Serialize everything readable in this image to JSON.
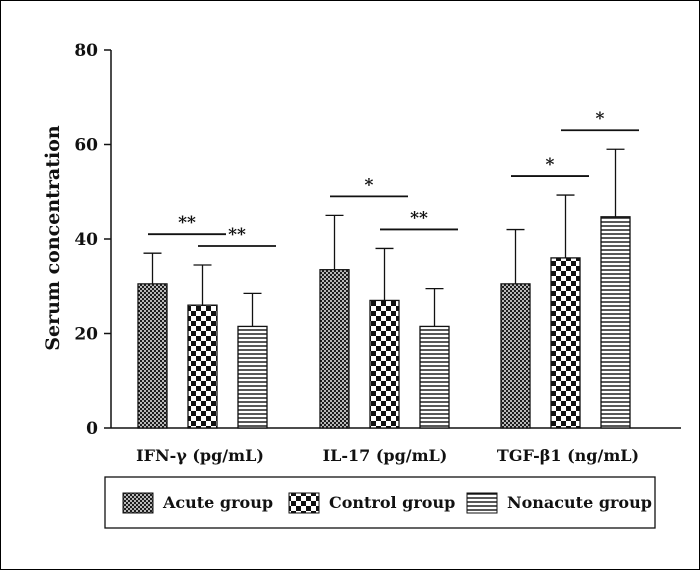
{
  "chart_data": {
    "type": "bar",
    "categories": [
      "IFN-γ (pg/mL)",
      "IL-17 (pg/mL)",
      "TGF-β1 (ng/mL)"
    ],
    "series": [
      {
        "name": "Acute group",
        "pattern": "crosshatch",
        "values": [
          30.5,
          33.5,
          30.5
        ],
        "errors": [
          6.5,
          11.5,
          11.5
        ]
      },
      {
        "name": "Control group",
        "pattern": "checker",
        "values": [
          26,
          27,
          36
        ],
        "errors": [
          8.5,
          11,
          13.3
        ]
      },
      {
        "name": "Nonacute group",
        "pattern": "horizontal-lines",
        "values": [
          21.5,
          21.5,
          44.7
        ],
        "errors": [
          7,
          8,
          14.3
        ]
      }
    ],
    "ylabel": "Serum concentration",
    "ylim": [
      0,
      80
    ],
    "yticks": [
      "0",
      "20",
      "40",
      "60",
      "80"
    ],
    "grid": false,
    "legend_position": "bottom",
    "annotations": [
      {
        "category": 0,
        "from_series": 0,
        "to_series": 1,
        "text": "**"
      },
      {
        "category": 0,
        "from_series": 1,
        "to_series": 2,
        "text": "**"
      },
      {
        "category": 1,
        "from_series": 0,
        "to_series": 1,
        "text": "*"
      },
      {
        "category": 1,
        "from_series": 1,
        "to_series": 2,
        "text": "**"
      },
      {
        "category": 2,
        "from_series": 0,
        "to_series": 1,
        "text": "*"
      },
      {
        "category": 2,
        "from_series": 1,
        "to_series": 2,
        "text": "*"
      }
    ]
  },
  "colors": {
    "ink": "#111111",
    "background": "#ffffff"
  }
}
